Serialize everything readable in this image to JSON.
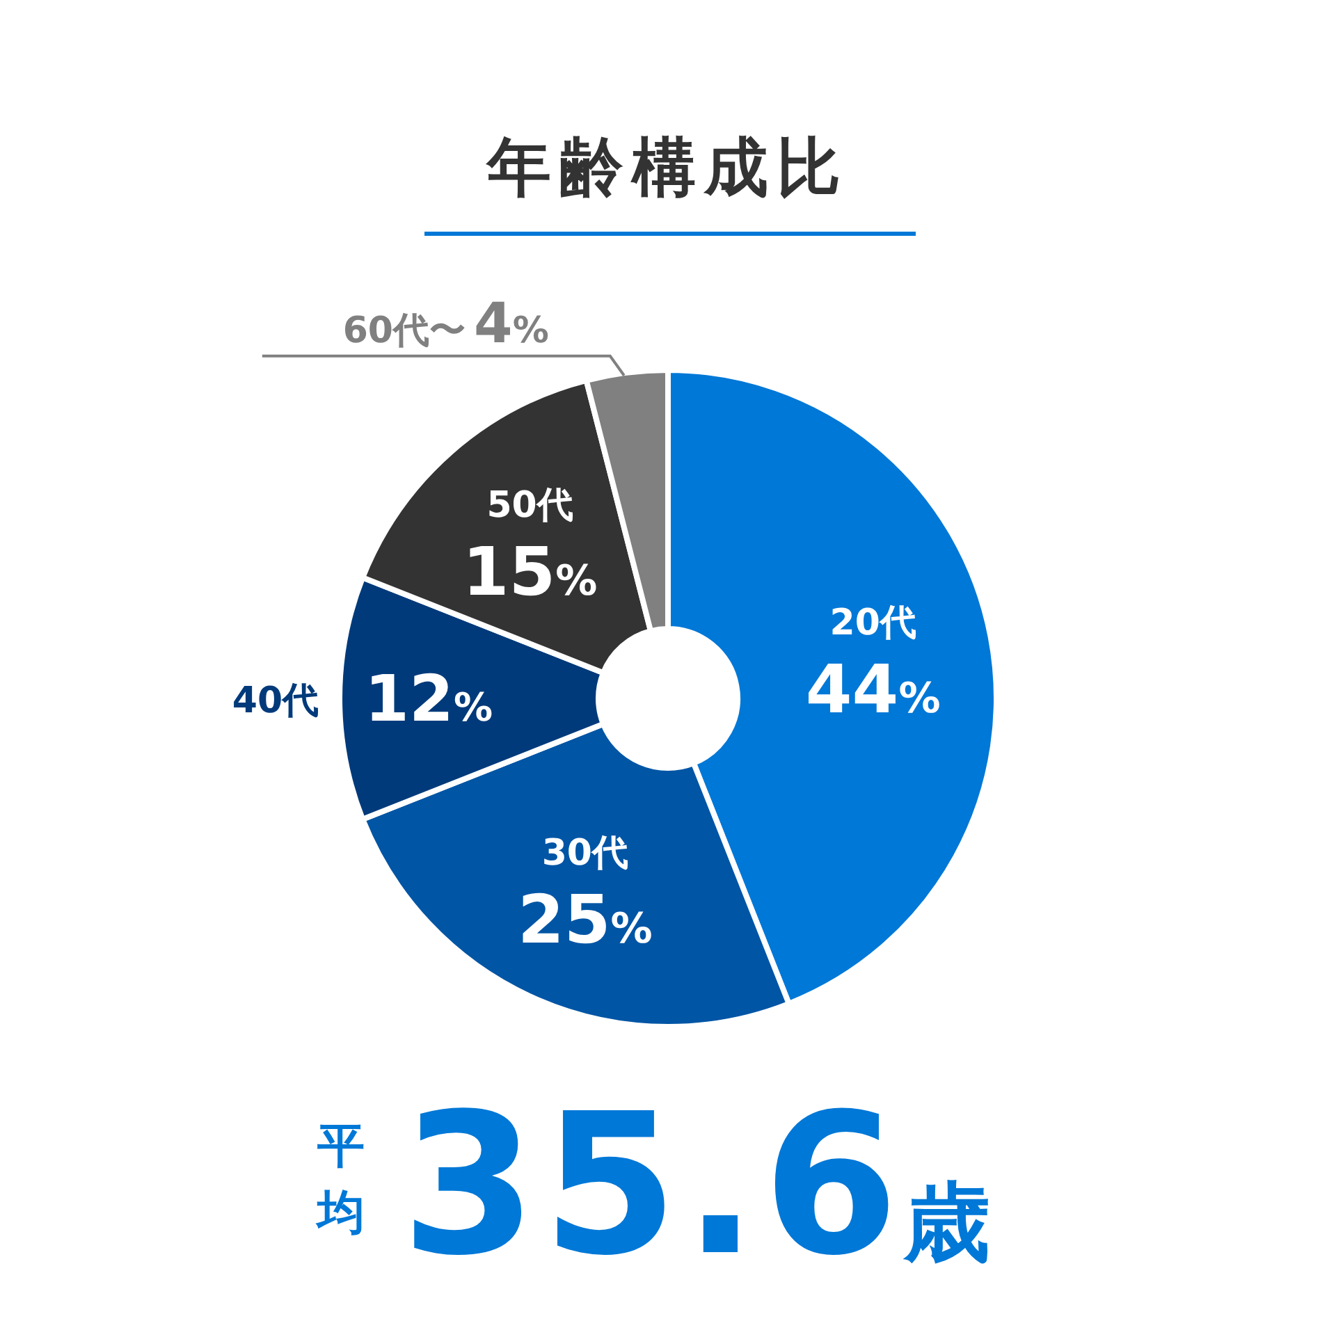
{
  "chart_data": {
    "type": "donut",
    "title": "年齢構成比",
    "categories": [
      "20代",
      "30代",
      "40代",
      "50代",
      "60代〜"
    ],
    "values": [
      44,
      25,
      12,
      15,
      4
    ],
    "colors": [
      "#0078d7",
      "#0055a5",
      "#003a7a",
      "#333333",
      "#808080"
    ],
    "value_labels": [
      "44%",
      "25%",
      "12%",
      "15%",
      "4%"
    ],
    "annotations": [
      "平均",
      "35.6歳"
    ],
    "legend": false
  }
}
